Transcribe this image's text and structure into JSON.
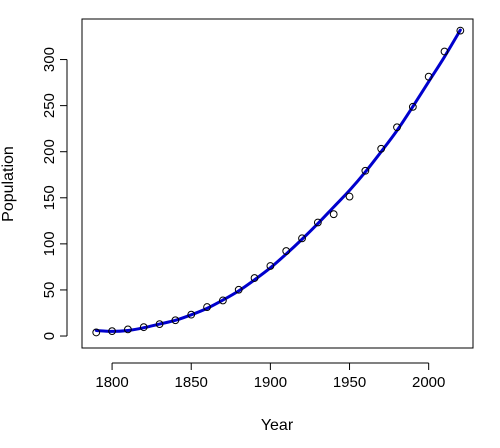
{
  "chart_data": {
    "type": "scatter",
    "title": "",
    "xlabel": "Year",
    "ylabel": "Population",
    "xlim": [
      1781,
      2028
    ],
    "ylim": [
      -13,
      344
    ],
    "x_ticks": [
      1800,
      1850,
      1900,
      1950,
      2000
    ],
    "y_ticks": [
      0,
      50,
      100,
      150,
      200,
      250,
      300
    ],
    "grid": false,
    "legend": "none",
    "series": [
      {
        "kind": "points",
        "marker": "open-circle",
        "color": "#000000",
        "x": [
          1790,
          1800,
          1810,
          1820,
          1830,
          1840,
          1850,
          1860,
          1870,
          1880,
          1890,
          1900,
          1910,
          1920,
          1930,
          1940,
          1950,
          1960,
          1970,
          1980,
          1990,
          2000,
          2010,
          2020
        ],
        "y": [
          3.9,
          5.3,
          7.2,
          9.6,
          12.9,
          17.1,
          23.2,
          31.4,
          38.6,
          50.2,
          62.9,
          76.0,
          92.2,
          106.0,
          123.2,
          132.2,
          151.3,
          179.3,
          203.2,
          226.5,
          248.7,
          281.4,
          308.7,
          331.4
        ]
      },
      {
        "kind": "fitted-line",
        "color": "#0000CD",
        "x": [
          1790,
          1800,
          1810,
          1820,
          1830,
          1840,
          1850,
          1860,
          1870,
          1880,
          1890,
          1900,
          1910,
          1920,
          1930,
          1940,
          1950,
          1960,
          1970,
          1980,
          1990,
          2000,
          2010,
          2020
        ],
        "y": [
          6,
          5,
          6,
          9,
          13,
          17,
          23,
          30,
          39,
          49,
          61,
          74,
          89,
          105,
          122,
          140,
          158,
          178,
          200,
          223,
          249,
          276,
          303,
          332
        ]
      }
    ]
  }
}
